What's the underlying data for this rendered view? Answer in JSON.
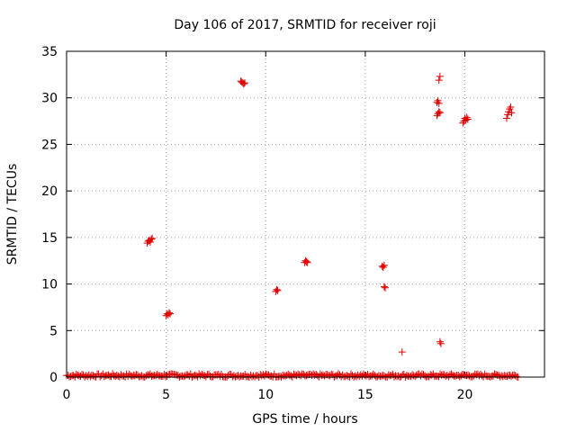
{
  "chart_data": {
    "type": "scatter",
    "title": "Day 106 of 2017, SRMTID for receiver roji",
    "xlabel": "GPS time / hours",
    "ylabel": "SRMTID / TECUs",
    "xlim": [
      0,
      24
    ],
    "ylim": [
      0,
      35
    ],
    "xticks": [
      0,
      5,
      10,
      15,
      20
    ],
    "yticks": [
      0,
      5,
      10,
      15,
      20,
      25,
      30,
      35
    ],
    "grid": true,
    "marker": "+",
    "color": "#e00000",
    "baseline": {
      "x_start": 0.0,
      "x_end": 22.7,
      "step": 0.07,
      "y_range": [
        0.0,
        0.35
      ]
    },
    "clusters": [
      {
        "x": [
          4.05,
          4.1,
          4.15,
          4.2,
          4.25,
          4.3
        ],
        "y": [
          14.4,
          14.6,
          14.7,
          14.5,
          14.8,
          14.9
        ]
      },
      {
        "x": [
          5.0,
          5.05,
          5.1,
          5.15,
          5.2
        ],
        "y": [
          6.6,
          6.8,
          6.7,
          6.9,
          6.8
        ]
      },
      {
        "x": [
          8.75,
          8.8,
          8.85,
          8.9,
          8.95
        ],
        "y": [
          31.8,
          31.7,
          31.6,
          31.5,
          31.6
        ]
      },
      {
        "x": [
          10.5,
          10.55,
          10.6
        ],
        "y": [
          9.2,
          9.4,
          9.3
        ]
      },
      {
        "x": [
          11.95,
          12.0,
          12.05,
          12.1
        ],
        "y": [
          12.3,
          12.5,
          12.4,
          12.3
        ]
      },
      {
        "x": [
          15.85,
          15.9,
          15.95
        ],
        "y": [
          11.9,
          11.8,
          12.0
        ]
      },
      {
        "x": [
          15.95,
          16.0
        ],
        "y": [
          9.7,
          9.6
        ]
      },
      {
        "x": [
          16.85
        ],
        "y": [
          2.7
        ]
      },
      {
        "x": [
          18.6,
          18.65,
          18.7
        ],
        "y": [
          29.5,
          29.7,
          29.4
        ]
      },
      {
        "x": [
          18.6,
          18.65,
          18.7,
          18.75
        ],
        "y": [
          28.1,
          28.3,
          28.5,
          28.4
        ]
      },
      {
        "x": [
          18.7
        ],
        "y": [
          31.9
        ]
      },
      {
        "x": [
          18.75
        ],
        "y": [
          32.3
        ]
      },
      {
        "x": [
          18.75,
          18.8
        ],
        "y": [
          3.8,
          3.6
        ]
      },
      {
        "x": [
          19.9,
          19.95,
          20.0,
          20.05,
          20.1,
          20.15
        ],
        "y": [
          27.3,
          27.5,
          27.8,
          27.6,
          27.9,
          27.7
        ]
      },
      {
        "x": [
          22.1,
          22.15,
          22.2,
          22.25,
          22.3,
          22.35
        ],
        "y": [
          27.8,
          28.2,
          28.5,
          28.8,
          29.0,
          28.4
        ]
      }
    ]
  }
}
